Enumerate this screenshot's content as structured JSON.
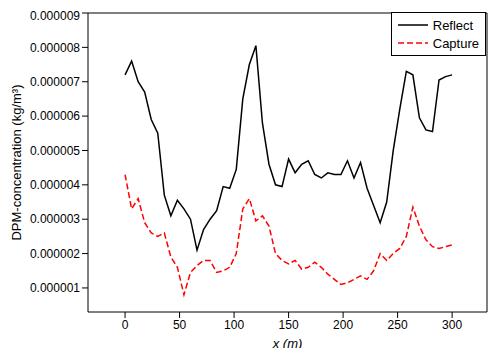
{
  "chart_data": {
    "type": "line",
    "x_label": "x (m)",
    "y_label": "DPM-concentration (kg/m³)",
    "x": [
      0,
      6,
      12,
      18,
      24,
      30,
      36,
      42,
      48,
      54,
      60,
      66,
      72,
      78,
      84,
      90,
      96,
      102,
      108,
      114,
      120,
      126,
      132,
      138,
      144,
      150,
      156,
      162,
      168,
      174,
      180,
      186,
      192,
      198,
      204,
      210,
      216,
      222,
      228,
      234,
      240,
      246,
      252,
      258,
      264,
      270,
      276,
      282,
      288,
      294,
      300
    ],
    "series": [
      {
        "name": "Reflect",
        "color": "#000000",
        "line_style": "solid",
        "values": [
          7.2e-06,
          7.6e-06,
          7e-06,
          6.7e-06,
          5.9e-06,
          5.5e-06,
          3.7e-06,
          3.1e-06,
          3.55e-06,
          3.3e-06,
          3e-06,
          2.1e-06,
          2.7e-06,
          3e-06,
          3.25e-06,
          3.95e-06,
          3.9e-06,
          4.45e-06,
          6.5e-06,
          7.5e-06,
          8.05e-06,
          5.8e-06,
          4.6e-06,
          4e-06,
          3.95e-06,
          4.75e-06,
          4.35e-06,
          4.6e-06,
          4.7e-06,
          4.3e-06,
          4.2e-06,
          4.35e-06,
          4.3e-06,
          4.3e-06,
          4.7e-06,
          4.2e-06,
          4.65e-06,
          3.9e-06,
          3.4e-06,
          2.9e-06,
          3.5e-06,
          5e-06,
          6.2e-06,
          7.3e-06,
          7.2e-06,
          5.95e-06,
          5.6e-06,
          5.55e-06,
          7.05e-06,
          7.15e-06,
          7.2e-06
        ]
      },
      {
        "name": "Capture",
        "color": "#ff0000",
        "line_style": "dashed",
        "values": [
          4.3e-06,
          3.3e-06,
          3.6e-06,
          2.9e-06,
          2.6e-06,
          2.5e-06,
          2.6e-06,
          1.9e-06,
          1.6e-06,
          8e-07,
          1.45e-06,
          1.65e-06,
          1.8e-06,
          1.8e-06,
          1.45e-06,
          1.5e-06,
          1.6e-06,
          2e-06,
          3.3e-06,
          3.6e-06,
          2.95e-06,
          3.1e-06,
          2.8e-06,
          2e-06,
          1.8e-06,
          1.7e-06,
          1.8e-06,
          1.55e-06,
          1.6e-06,
          1.75e-06,
          1.6e-06,
          1.4e-06,
          1.25e-06,
          1.1e-06,
          1.15e-06,
          1.25e-06,
          1.35e-06,
          1.25e-06,
          1.5e-06,
          2e-06,
          1.8e-06,
          2e-06,
          2.15e-06,
          2.5e-06,
          3.35e-06,
          2.8e-06,
          2.4e-06,
          2.2e-06,
          2.15e-06,
          2.2e-06,
          2.25e-06
        ]
      }
    ],
    "xlim": [
      -34,
      332
    ],
    "xticks": [
      0,
      50,
      100,
      150,
      200,
      250,
      300
    ],
    "ylim": [
      3e-07,
      9e-06
    ],
    "yticks": [
      1e-06,
      2e-06,
      3e-06,
      4e-06,
      5e-06,
      6e-06,
      7e-06,
      8e-06,
      9e-06
    ],
    "legend": "top-right",
    "grid": false
  }
}
